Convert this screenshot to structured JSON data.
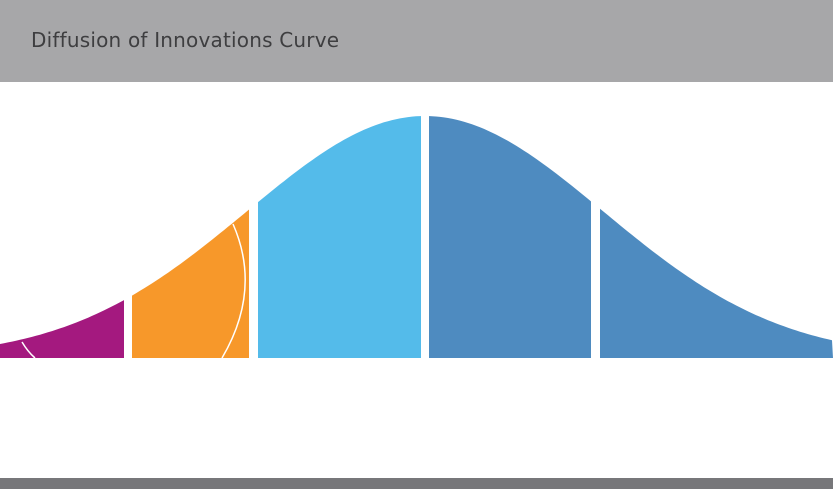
{
  "header": {
    "title": "Diffusion of Innovations Curve"
  }
}
